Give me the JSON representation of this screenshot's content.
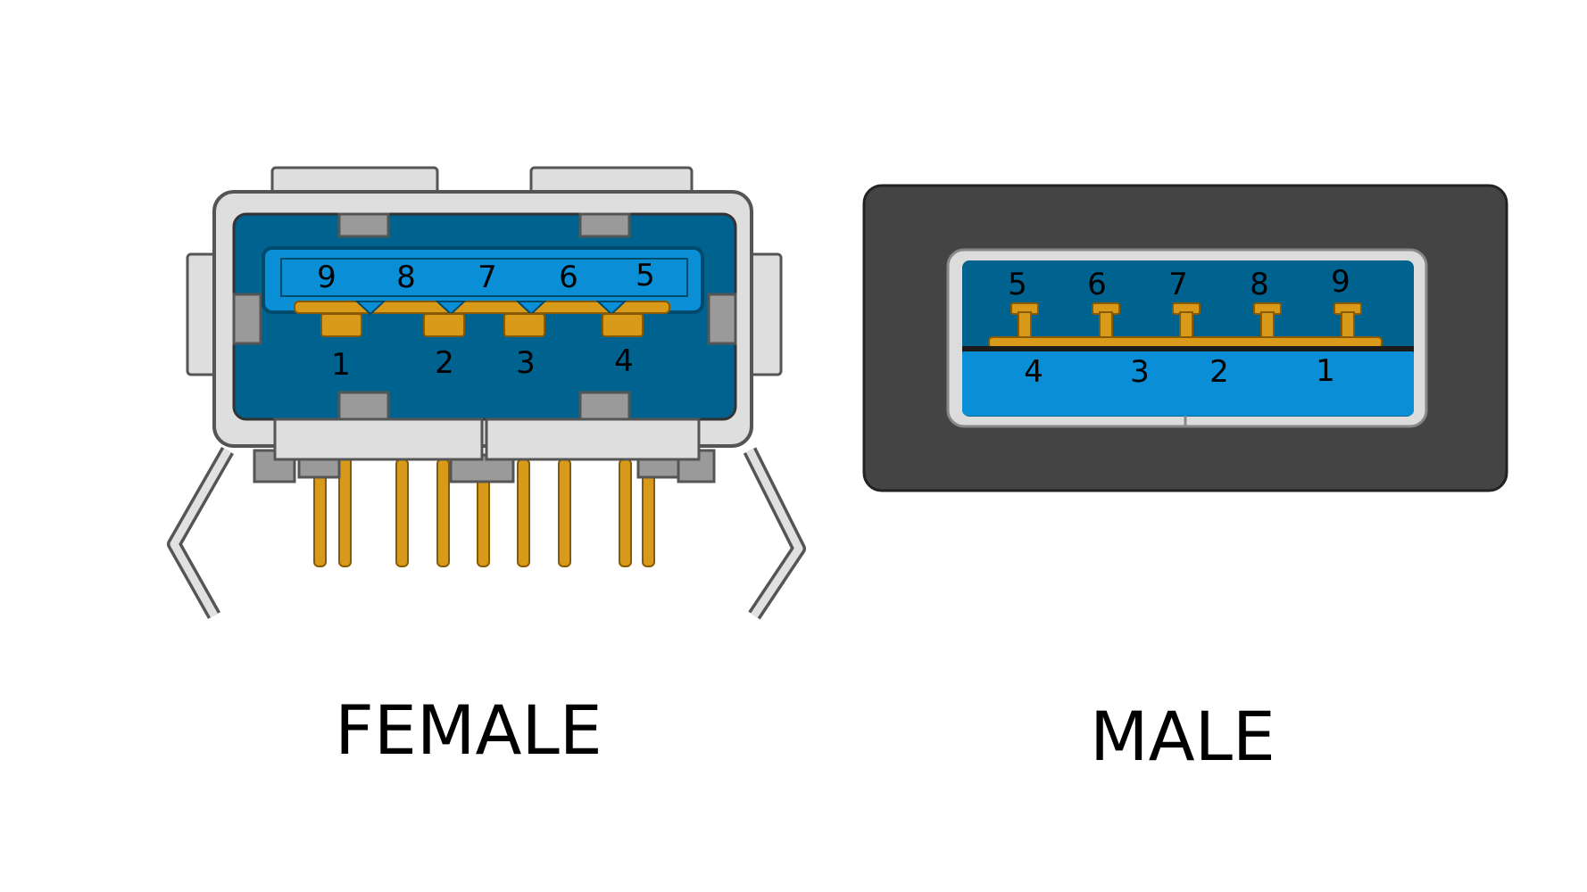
{
  "female": {
    "label": "FEMALE",
    "top_row_pins": [
      "9",
      "8",
      "7",
      "6",
      "5"
    ],
    "bottom_row_pins": [
      "1",
      "2",
      "3",
      "4"
    ]
  },
  "male": {
    "label": "MALE",
    "top_row_pins": [
      "5",
      "6",
      "7",
      "8",
      "9"
    ],
    "bottom_row_pins": [
      "4",
      "3",
      "2",
      "1"
    ]
  },
  "colors": {
    "usb3_blue": "#0a8fd6",
    "dark_blue": "#00628f",
    "gold": "#d99a1a",
    "shell_gray": "#d7d7d7",
    "plug_housing": "#444444"
  }
}
